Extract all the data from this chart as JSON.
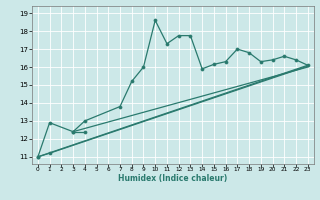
{
  "xlabel": "Humidex (Indice chaleur)",
  "bg_color": "#cce8e8",
  "line_color": "#2a7a6e",
  "grid_color": "#b0d8d8",
  "xlim": [
    -0.5,
    23.5
  ],
  "ylim": [
    10.6,
    19.4
  ],
  "xticks": [
    0,
    1,
    2,
    3,
    4,
    5,
    6,
    7,
    8,
    9,
    10,
    11,
    12,
    13,
    14,
    15,
    16,
    17,
    18,
    19,
    20,
    21,
    22,
    23
  ],
  "yticks": [
    11,
    12,
    13,
    14,
    15,
    16,
    17,
    18,
    19
  ],
  "series_main_x": [
    0,
    1,
    3,
    4,
    7,
    8,
    9,
    10,
    11,
    12,
    13,
    14,
    15,
    16,
    17,
    18,
    19,
    20,
    21,
    22,
    23
  ],
  "series_main_y": [
    11.0,
    12.9,
    12.4,
    13.0,
    13.8,
    15.2,
    16.0,
    18.6,
    17.3,
    17.75,
    17.75,
    15.9,
    16.15,
    16.3,
    17.0,
    16.8,
    16.3,
    16.4,
    16.6,
    16.4,
    16.1
  ],
  "series_low_segments": [
    {
      "x": [
        0,
        1
      ],
      "y": [
        11.0,
        11.2
      ]
    },
    {
      "x": [
        3,
        4
      ],
      "y": [
        12.4,
        12.4
      ]
    }
  ],
  "linear_lines": [
    {
      "x": [
        0,
        23
      ],
      "y": [
        11.0,
        16.1
      ]
    },
    {
      "x": [
        1,
        23
      ],
      "y": [
        11.2,
        16.05
      ]
    },
    {
      "x": [
        3,
        23
      ],
      "y": [
        12.4,
        16.0
      ]
    }
  ]
}
